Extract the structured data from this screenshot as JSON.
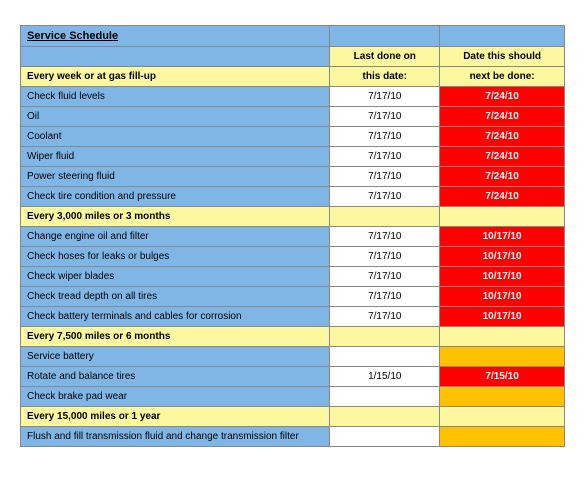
{
  "colors": {
    "blue": "#80b6e6",
    "yellow": "#fdf7a0",
    "white": "#ffffff",
    "red": "#ff0000",
    "orange": "#ffc100"
  },
  "title": "Service Schedule",
  "header": {
    "last_top": "Last done on",
    "last_bottom": "this date:",
    "next_top": "Date this should",
    "next_bottom": "next be done:"
  },
  "sections": [
    {
      "label": "Every week or at gas fill-up",
      "rows": [
        {
          "task": "Check fluid levels",
          "last": "7/17/10",
          "next": "7/24/10",
          "next_bg": "red"
        },
        {
          "task": "Oil",
          "last": "7/17/10",
          "next": "7/24/10",
          "next_bg": "red"
        },
        {
          "task": "Coolant",
          "last": "7/17/10",
          "next": "7/24/10",
          "next_bg": "red"
        },
        {
          "task": "Wiper fluid",
          "last": "7/17/10",
          "next": "7/24/10",
          "next_bg": "red"
        },
        {
          "task": "Power steering fluid",
          "last": "7/17/10",
          "next": "7/24/10",
          "next_bg": "red"
        },
        {
          "task": "Check tire condition and pressure",
          "last": "7/17/10",
          "next": "7/24/10",
          "next_bg": "red"
        }
      ]
    },
    {
      "label": "Every 3,000 miles or 3 months",
      "rows": [
        {
          "task": "Change engine oil and filter",
          "last": "7/17/10",
          "next": "10/17/10",
          "next_bg": "red"
        },
        {
          "task": "Check hoses for leaks or bulges",
          "last": "7/17/10",
          "next": "10/17/10",
          "next_bg": "red"
        },
        {
          "task": "Check wiper blades",
          "last": "7/17/10",
          "next": "10/17/10",
          "next_bg": "red"
        },
        {
          "task": "Check tread depth on all tires",
          "last": "7/17/10",
          "next": "10/17/10",
          "next_bg": "red"
        },
        {
          "task": "Check battery terminals and cables for corrosion",
          "last": "7/17/10",
          "next": "10/17/10",
          "next_bg": "red"
        }
      ]
    },
    {
      "label": "Every 7,500 miles or 6 months",
      "rows": [
        {
          "task": "Service battery",
          "last": "",
          "next": "",
          "next_bg": "orange"
        },
        {
          "task": "Rotate and balance tires",
          "last": "1/15/10",
          "next": "7/15/10",
          "next_bg": "red"
        },
        {
          "task": "Check brake pad wear",
          "last": "",
          "next": "",
          "next_bg": "orange"
        }
      ]
    },
    {
      "label": "Every 15,000 miles or 1 year",
      "rows": [
        {
          "task": "Flush and fill transmission fluid and change transmission filter",
          "last": "",
          "next": "",
          "next_bg": "orange"
        }
      ]
    }
  ]
}
